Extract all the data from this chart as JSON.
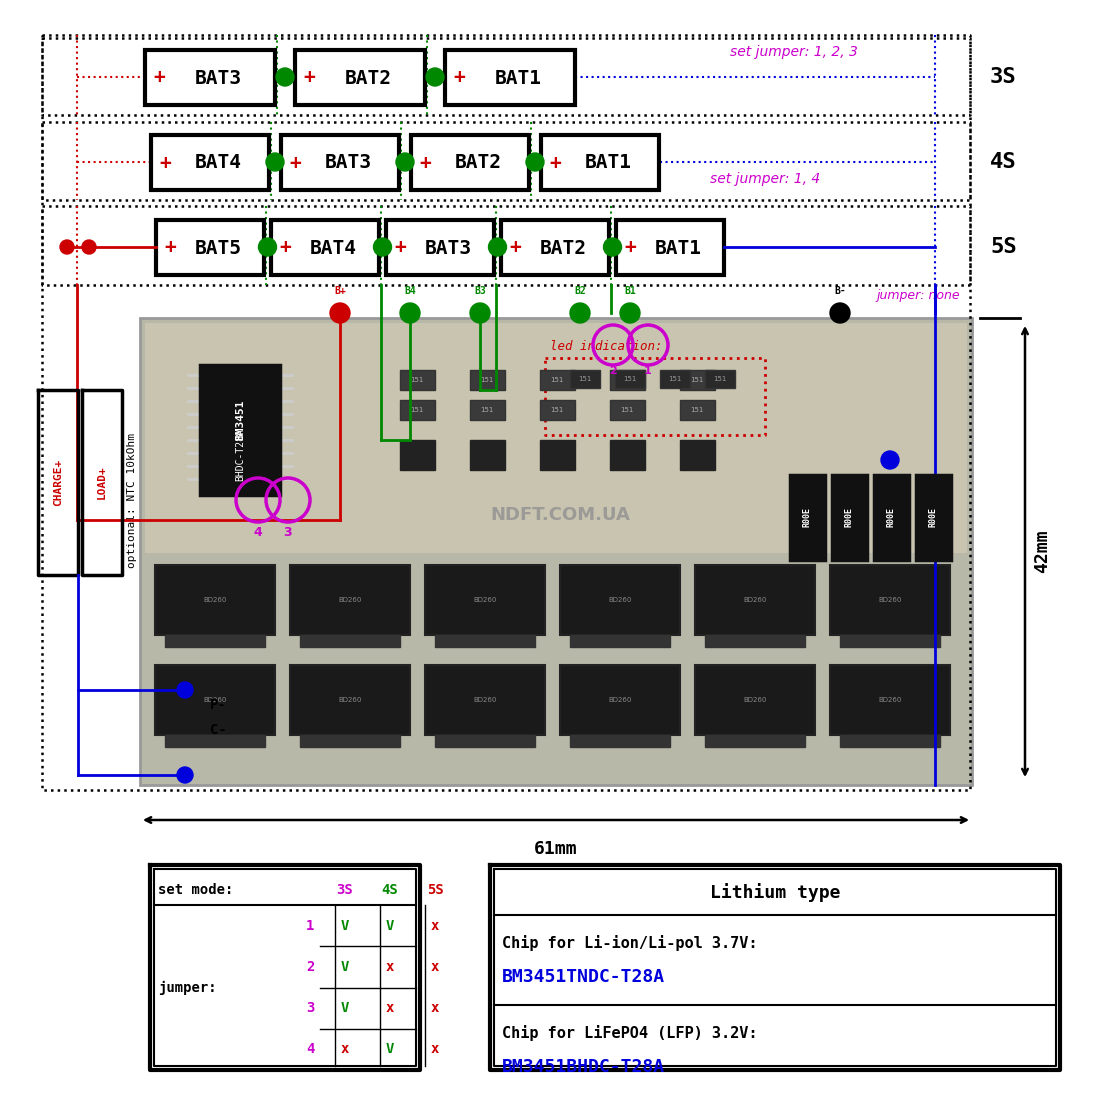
{
  "bg_color": "#ffffff",
  "color_red": "#cc0000",
  "color_green": "#008800",
  "color_blue": "#0000dd",
  "color_magenta": "#cc00cc",
  "color_black": "#000000",
  "color_dkgreen": "#006600",
  "jumper_text_3s": "set jumper: 1, 2, 3",
  "jumper_text_4s": "set jumper: 1, 4",
  "jumper_text_5s": "jumper: none",
  "label_3s": "3S",
  "label_4s": "4S",
  "label_5s": "5S",
  "ntc_text": "optional: NTC 10kOhm",
  "dim_61mm": "61mm",
  "dim_42mm": "42mm",
  "led_indication_text": "led indication:",
  "lithium_title": "Lithium type",
  "chip1_label": "Chip for Li-ion/Li-pol 3.7V:",
  "chip1_name": "BM3451TNDC-T28A",
  "chip2_label": "Chip for LiFePO4 (LFP) 3.2V:",
  "chip2_name": "BM3451BHDC-T28A",
  "jumper_label": "jumper:",
  "set_mode_label": "set mode:"
}
